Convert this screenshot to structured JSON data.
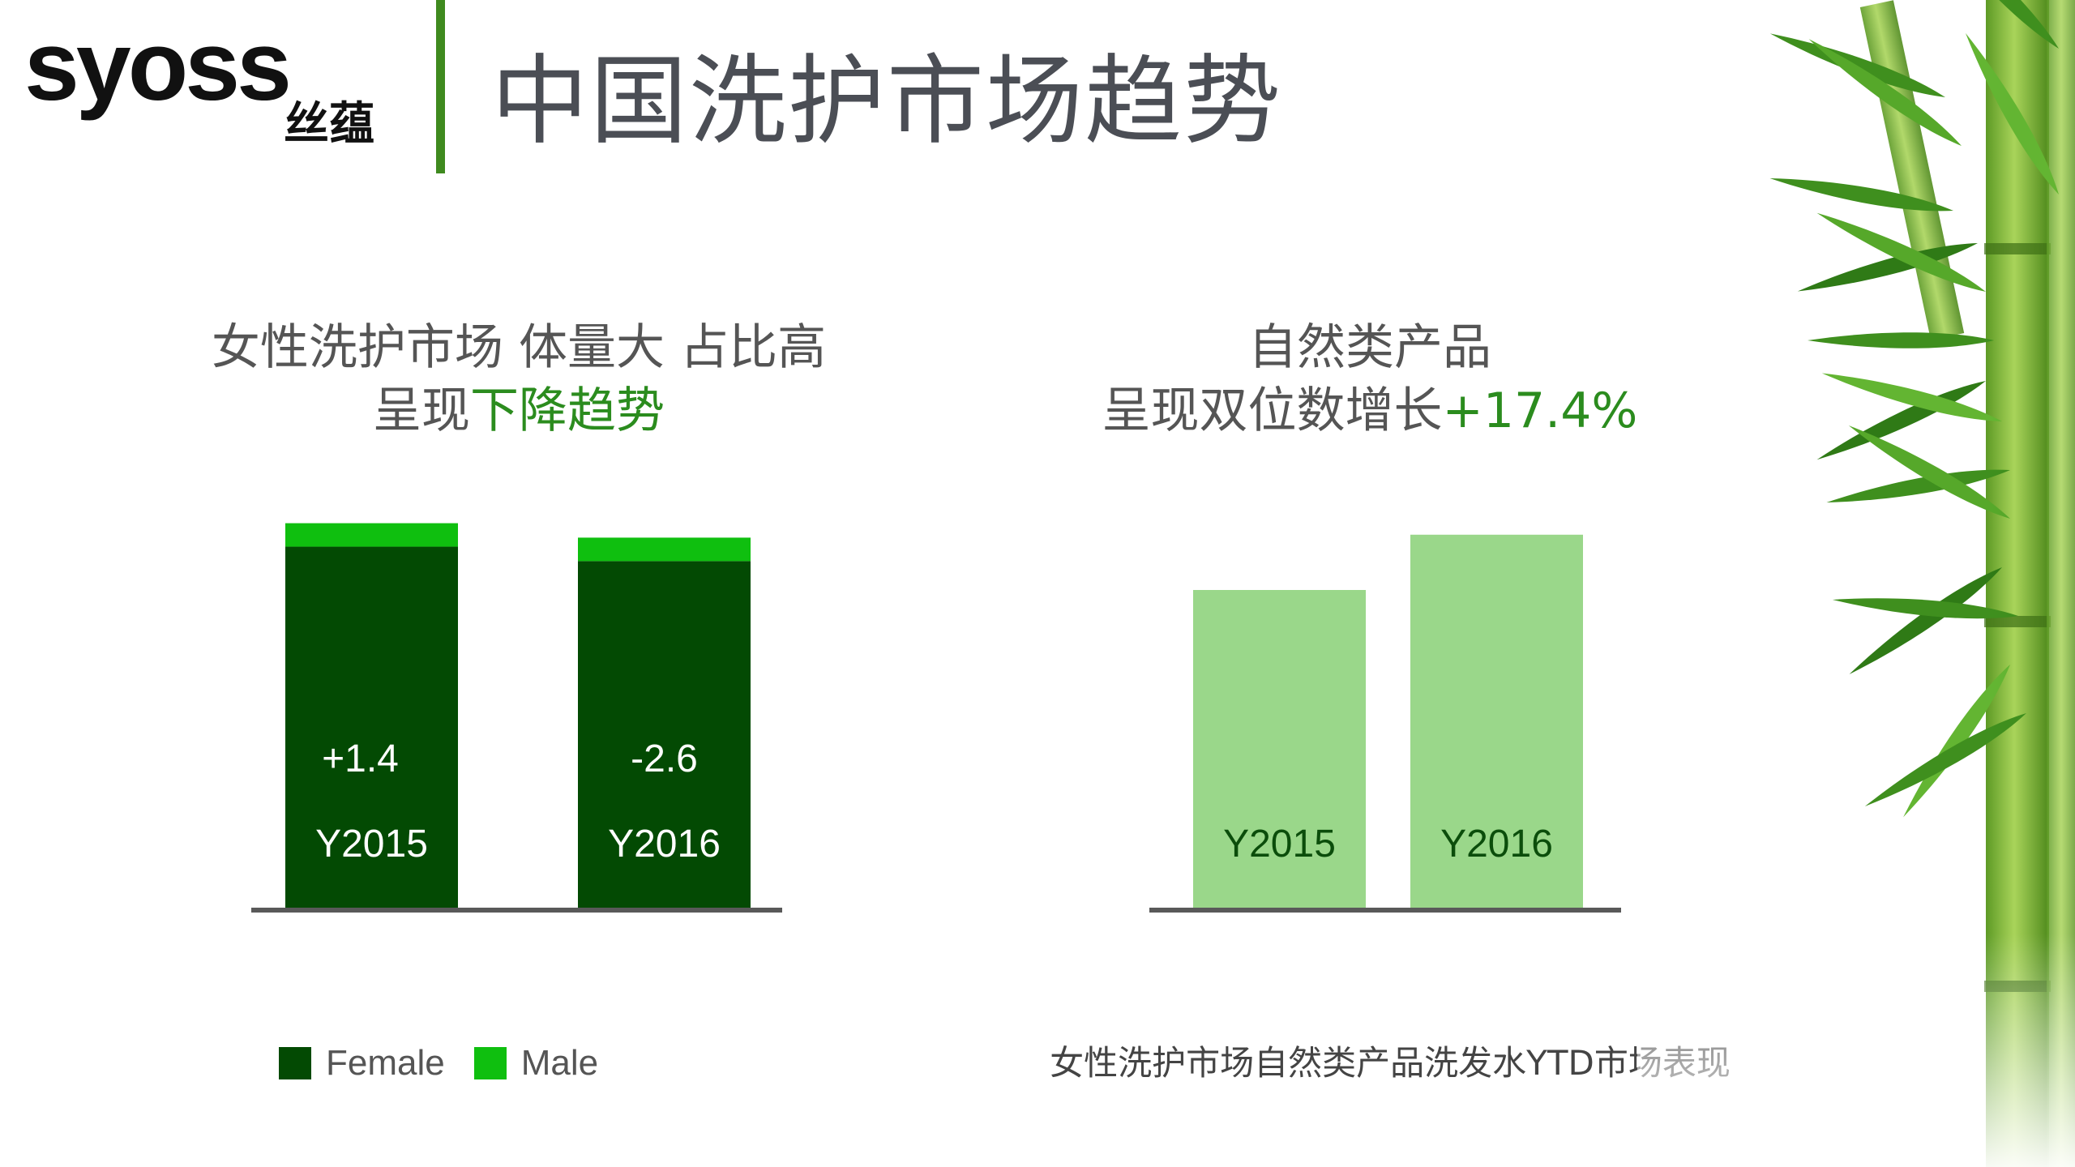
{
  "brand": {
    "logo_text": "syoss",
    "logo_cn": "丝蕴"
  },
  "title": "中国洗护市场趋势",
  "left_panel": {
    "heading_line1": "女性洗护市场  体量大  占比高",
    "heading_line2_plain": "呈现",
    "heading_line2_green": "下降趋势"
  },
  "right_panel": {
    "heading_line1": "自然类产品",
    "heading_line2_plain": "呈现双位数增长",
    "heading_line2_green": "+17.4%"
  },
  "legend": [
    {
      "label": "Female",
      "color": "#034a03"
    },
    {
      "label": "Male",
      "color": "#0fbf0f"
    }
  ],
  "caption": "女性洗护市场自然类产品洗发水YTD市场表现",
  "colors": {
    "accent_green": "#2b8c1e",
    "female": "#034a03",
    "male": "#0fbf0f",
    "natural": "#9ad78a",
    "axis": "#595959",
    "title_gray": "#4b4e55"
  },
  "chart_data": [
    {
      "type": "bar",
      "stacked": true,
      "categories": [
        "Y2015",
        "Y2016"
      ],
      "series": [
        {
          "name": "Female",
          "values": [
            100,
            96
          ]
        },
        {
          "name": "Male",
          "values": [
            6.5,
            6.5
          ]
        }
      ],
      "annotations": [
        "+1.4",
        "-2.6"
      ],
      "ylim": [
        0,
        110
      ],
      "grid": false,
      "legend_position": "bottom-left"
    },
    {
      "type": "bar",
      "categories": [
        "Y2015",
        "Y2016"
      ],
      "values": [
        100,
        117.4
      ],
      "ylim": [
        0,
        125
      ],
      "grid": false,
      "legend_position": "none"
    }
  ]
}
